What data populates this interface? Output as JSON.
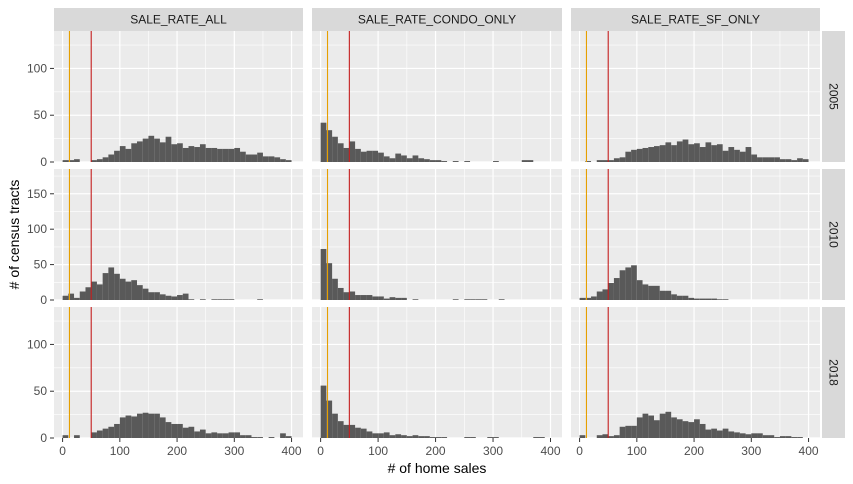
{
  "chart_data": {
    "type": "histogram-facet",
    "xlabel": "# of home sales",
    "ylabel": "# of census tracts",
    "x_ticks": [
      0,
      100,
      200,
      300,
      400
    ],
    "xlim": [
      -15,
      420
    ],
    "panel_columns": [
      "SALE_RATE_ALL",
      "SALE_RATE_CONDO_ONLY",
      "SALE_RATE_SF_ONLY"
    ],
    "panel_rows": [
      {
        "label": "2005",
        "ylim": [
          0,
          140
        ],
        "y_ticks": [
          0,
          50,
          100
        ]
      },
      {
        "label": "2010",
        "ylim": [
          0,
          185
        ],
        "y_ticks": [
          0,
          50,
          100,
          150
        ]
      },
      {
        "label": "2018",
        "ylim": [
          0,
          140
        ],
        "y_ticks": [
          0,
          50,
          100
        ]
      }
    ],
    "bin_start": 0,
    "bin_width": 10,
    "reference_lines": [
      {
        "color": "#e69f00",
        "x": 12
      },
      {
        "color": "#c41e1e",
        "x": 50
      }
    ],
    "bar_color": "#595959",
    "panel_background": "#ebebeb",
    "strip_background": "#d9d9d9",
    "counts": [
      [
        [
          2,
          2,
          3,
          0,
          0,
          2,
          3,
          5,
          8,
          12,
          17,
          14,
          20,
          22,
          25,
          28,
          25,
          21,
          27,
          19,
          20,
          15,
          17,
          16,
          19,
          15,
          15,
          14,
          14,
          14,
          15,
          11,
          8,
          8,
          10,
          6,
          6,
          5,
          3,
          2,
          0
        ],
        [
          42,
          34,
          27,
          20,
          15,
          22,
          14,
          11,
          12,
          12,
          10,
          6,
          4,
          9,
          7,
          4,
          7,
          4,
          3,
          2,
          2,
          1,
          0,
          1,
          0,
          1,
          0,
          0,
          0,
          0,
          1,
          0,
          0,
          0,
          0,
          2,
          2,
          0,
          0,
          0,
          0
        ],
        [
          0,
          1,
          0,
          2,
          2,
          2,
          4,
          5,
          11,
          13,
          14,
          15,
          16,
          17,
          18,
          21,
          18,
          22,
          24,
          19,
          20,
          16,
          21,
          18,
          19,
          12,
          16,
          13,
          11,
          16,
          8,
          5,
          5,
          5,
          5,
          3,
          3,
          2,
          4,
          3,
          0
        ]
      ],
      [
        [
          6,
          9,
          3,
          12,
          18,
          26,
          22,
          38,
          46,
          37,
          30,
          26,
          28,
          21,
          16,
          11,
          11,
          8,
          6,
          5,
          7,
          9,
          1,
          0,
          1,
          0,
          1,
          1,
          1,
          1,
          0,
          0,
          0,
          0,
          1,
          0,
          0,
          0,
          0,
          0,
          0
        ],
        [
          72,
          52,
          30,
          17,
          11,
          12,
          7,
          7,
          7,
          5,
          5,
          2,
          4,
          3,
          3,
          0,
          1,
          0,
          0,
          0,
          0,
          0,
          0,
          1,
          0,
          1,
          1,
          1,
          1,
          0,
          0,
          1,
          0,
          0,
          0,
          0,
          0,
          0,
          0,
          0,
          0
        ],
        [
          3,
          3,
          5,
          12,
          15,
          24,
          31,
          42,
          46,
          49,
          28,
          22,
          20,
          20,
          13,
          13,
          8,
          6,
          6,
          3,
          2,
          2,
          2,
          2,
          1,
          1,
          0,
          0,
          0,
          0,
          0,
          0,
          0,
          0,
          0,
          0,
          0,
          0,
          0,
          0,
          0
        ]
      ],
      [
        [
          3,
          0,
          3,
          0,
          0,
          6,
          8,
          10,
          12,
          15,
          22,
          24,
          23,
          26,
          27,
          26,
          26,
          22,
          17,
          15,
          15,
          11,
          12,
          7,
          9,
          5,
          6,
          5,
          5,
          6,
          6,
          3,
          3,
          1,
          1,
          0,
          1,
          0,
          5,
          2,
          0
        ],
        [
          56,
          40,
          26,
          18,
          14,
          14,
          11,
          10,
          7,
          5,
          5,
          6,
          3,
          4,
          3,
          2,
          3,
          2,
          2,
          1,
          1,
          1,
          0,
          0,
          0,
          1,
          1,
          0,
          0,
          1,
          1,
          0,
          0,
          0,
          0,
          0,
          0,
          1,
          1,
          0,
          0
        ],
        [
          3,
          0,
          0,
          3,
          4,
          2,
          3,
          12,
          13,
          13,
          22,
          26,
          24,
          19,
          26,
          28,
          22,
          20,
          18,
          17,
          20,
          15,
          9,
          10,
          8,
          10,
          7,
          6,
          5,
          4,
          5,
          5,
          3,
          3,
          1,
          2,
          2,
          1,
          1,
          0,
          0
        ]
      ]
    ]
  }
}
